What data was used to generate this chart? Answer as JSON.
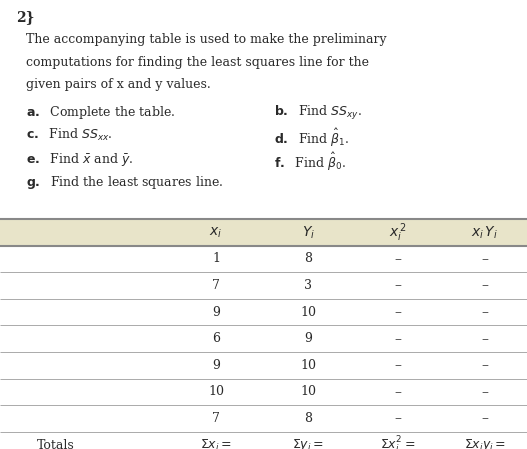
{
  "title_number": "2}",
  "paragraph_lines": [
    "The accompanying table is used to make the preliminary",
    "computations for finding the least squares line for the",
    "given pairs of x and y values."
  ],
  "xi_vals": [
    1,
    7,
    9,
    6,
    9,
    10,
    7
  ],
  "yi_vals": [
    8,
    3,
    10,
    9,
    10,
    10,
    8
  ],
  "bg_color": "#ffffff",
  "header_bg": "#e8e4c9",
  "table_line_color": "#888888",
  "text_color": "#2a2a2a",
  "dash": "–"
}
